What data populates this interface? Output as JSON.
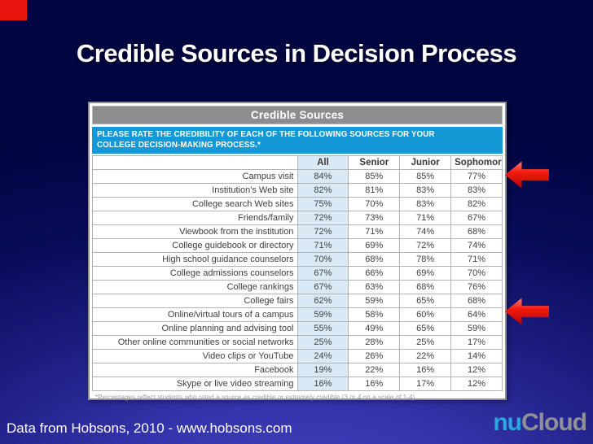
{
  "slide": {
    "title": "Credible Sources in Decision Process",
    "footer_credit": "Data from Hobsons, 2010 - www.hobsons.com",
    "logo": {
      "part1": "nu",
      "part2": "Cloud"
    },
    "colors": {
      "background_top": "#010540",
      "background_bottom": "#3434ab",
      "accent_red": "#e8140e",
      "question_bar_blue": "#1598d6",
      "titlebar_gray": "#8d8d8f",
      "all_column_tint": "#d9eaf6",
      "logo_blue": "#2ba7e0",
      "logo_gray": "#8f9194"
    }
  },
  "chart_data": {
    "type": "table",
    "title": "Credible Sources",
    "question": "PLEASE RATE THE CREDIBILITY OF EACH OF THE FOLLOWING SOURCES FOR YOUR COLLEGE DECISION-MAKING PROCESS.*",
    "columns": [
      "",
      "All",
      "Senior",
      "Junior",
      "Sophomore"
    ],
    "rows": [
      [
        "Campus visit",
        "84%",
        "85%",
        "85%",
        "77%"
      ],
      [
        "Institution's Web site",
        "82%",
        "81%",
        "83%",
        "83%"
      ],
      [
        "College search Web sites",
        "75%",
        "70%",
        "83%",
        "82%"
      ],
      [
        "Friends/family",
        "72%",
        "73%",
        "71%",
        "67%"
      ],
      [
        "Viewbook from the institution",
        "72%",
        "71%",
        "74%",
        "68%"
      ],
      [
        "College guidebook or directory",
        "71%",
        "69%",
        "72%",
        "74%"
      ],
      [
        "High school guidance counselors",
        "70%",
        "68%",
        "78%",
        "71%"
      ],
      [
        "College admissions counselors",
        "67%",
        "66%",
        "69%",
        "70%"
      ],
      [
        "College rankings",
        "67%",
        "63%",
        "68%",
        "76%"
      ],
      [
        "College fairs",
        "62%",
        "59%",
        "65%",
        "68%"
      ],
      [
        "Online/virtual tours of a campus",
        "59%",
        "58%",
        "60%",
        "64%"
      ],
      [
        "Online planning and advising tool",
        "55%",
        "49%",
        "65%",
        "59%"
      ],
      [
        "Other online communities or social networks",
        "25%",
        "28%",
        "25%",
        "17%"
      ],
      [
        "Video clips or YouTube",
        "24%",
        "26%",
        "22%",
        "14%"
      ],
      [
        "Facebook",
        "19%",
        "22%",
        "16%",
        "12%"
      ],
      [
        "Skype or live video streaming",
        "16%",
        "16%",
        "17%",
        "12%"
      ]
    ],
    "highlighted_rows": [
      "Campus visit",
      "Online/virtual tours of a campus"
    ],
    "footnote": "*Percentages reflect students who rated a source as credible or extremely credible (3 or 4 on a scale of 1-4)."
  }
}
